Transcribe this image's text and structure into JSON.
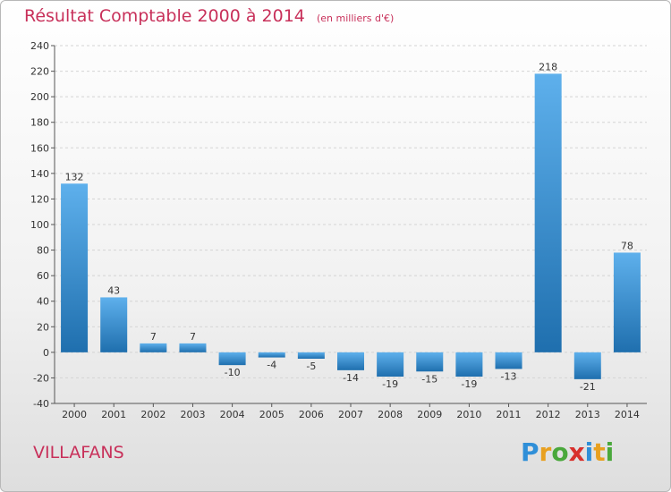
{
  "header": {
    "title": "Résultat Comptable 2000 à 2014",
    "unit": "(en milliers d'€)"
  },
  "commune": "VILLAFANS",
  "logo": {
    "letters": [
      "P",
      "r",
      "o",
      "x",
      "i",
      "t",
      "i"
    ],
    "colors": [
      "#2f8fd8",
      "#e8a020",
      "#4aa83c",
      "#d8302c",
      "#2f8fd8",
      "#e8a020",
      "#4aa83c"
    ]
  },
  "colors": {
    "title": "#c8305a",
    "bar_light": "#5eb0ec",
    "bar_dark": "#1f6fae",
    "grid": "#d4d4d4",
    "axis": "#555555"
  },
  "chart_data": {
    "type": "bar",
    "title": "Résultat Comptable 2000 à 2014",
    "xlabel": "",
    "ylabel": "",
    "categories": [
      "2000",
      "2001",
      "2002",
      "2003",
      "2004",
      "2005",
      "2006",
      "2007",
      "2008",
      "2009",
      "2010",
      "2011",
      "2012",
      "2013",
      "2014"
    ],
    "values": [
      132,
      43,
      7,
      7,
      -10,
      -4,
      -5,
      -14,
      -19,
      -15,
      -19,
      -13,
      218,
      -21,
      78
    ],
    "ylim": [
      -40,
      240
    ],
    "yticks": [
      -40,
      -20,
      0,
      20,
      40,
      60,
      80,
      100,
      120,
      140,
      160,
      180,
      200,
      220,
      240
    ],
    "grid": true,
    "legend": "none"
  }
}
